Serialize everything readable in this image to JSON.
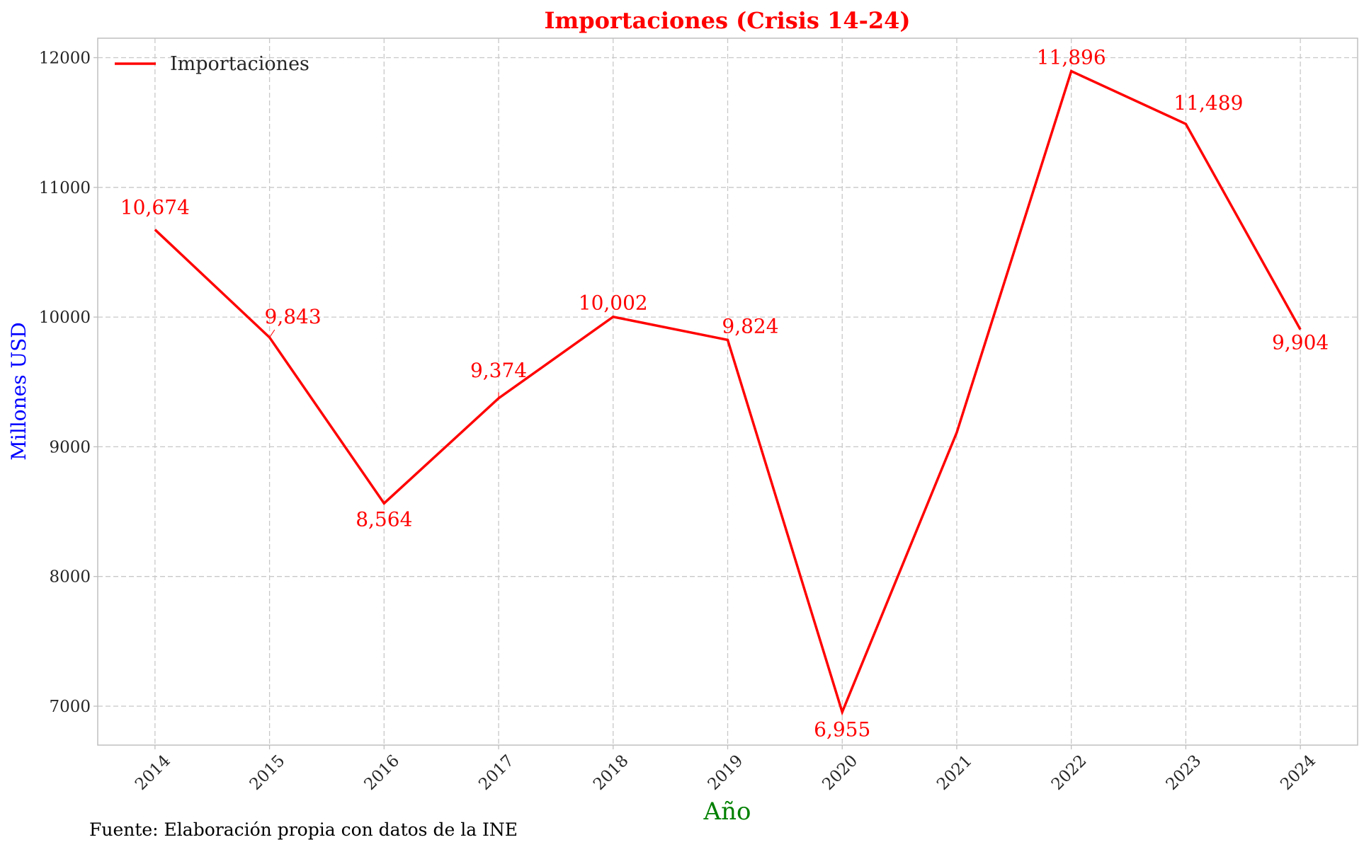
{
  "chart_data": {
    "type": "line",
    "title": "Importaciones (Crisis 14-24)",
    "xlabel": "Año",
    "ylabel": "Millones USD",
    "x": [
      2014,
      2015,
      2016,
      2017,
      2018,
      2019,
      2020,
      2021,
      2022,
      2023,
      2024
    ],
    "series": [
      {
        "name": "Importaciones",
        "color": "#ff0000",
        "values": [
          10674,
          9843,
          8564,
          9374,
          10002,
          9824,
          6955,
          9110,
          11896,
          11489,
          9904
        ],
        "data_labels": [
          "10,674",
          "9,843",
          "8,564",
          "9,374",
          "10,002",
          "9,824",
          "6,955",
          "",
          "11,896",
          "11,489",
          "9,904"
        ]
      }
    ],
    "x_tick_labels": [
      "2014",
      "2015",
      "2016",
      "2017",
      "2018",
      "2019",
      "2020",
      "2021",
      "2022",
      "2023",
      "2024"
    ],
    "y_ticks": [
      7000,
      8000,
      9000,
      10000,
      11000,
      12000
    ],
    "y_tick_labels": [
      "7000",
      "8000",
      "9000",
      "10000",
      "11000",
      "12000"
    ],
    "ylim": [
      6700,
      12150
    ],
    "xlim": [
      2013.5,
      2024.5
    ],
    "grid": true,
    "legend_position": "top-left"
  },
  "source_note": "Fuente: Elaboración propia con datos de la INE"
}
